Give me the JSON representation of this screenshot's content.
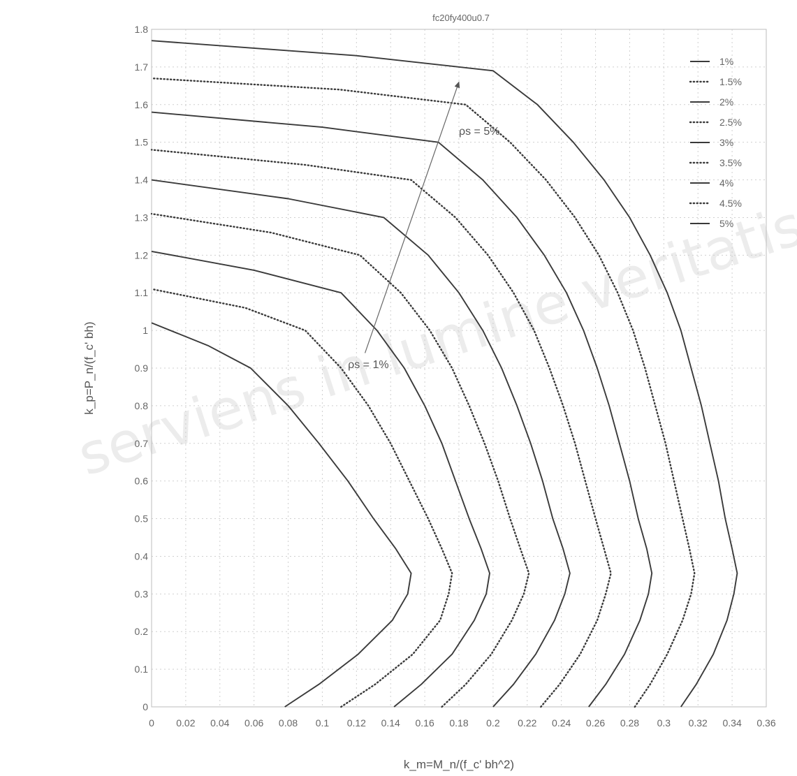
{
  "chart_data": {
    "type": "line",
    "title": "fc20fy400u0.7",
    "xlabel": "k_m=M_n/(f_c' bh^2)",
    "ylabel": "k_p=P_n/(f_c' bh)",
    "xlim": [
      0,
      0.36
    ],
    "ylim": [
      0,
      1.8
    ],
    "x_ticks": [
      0,
      0.02,
      0.04,
      0.06,
      0.08,
      0.1,
      0.12,
      0.14,
      0.16,
      0.18,
      0.2,
      0.22,
      0.24,
      0.26,
      0.28,
      0.3,
      0.32,
      0.34,
      0.36
    ],
    "y_ticks": [
      0,
      0.1,
      0.2,
      0.3,
      0.4,
      0.5,
      0.6,
      0.7,
      0.8,
      0.9,
      1,
      1.1,
      1.2,
      1.3,
      1.4,
      1.5,
      1.6,
      1.7,
      1.8
    ],
    "grid": true,
    "legend_position": "top-right",
    "annotations": [
      {
        "text": "ρs = 1%",
        "x": 0.115,
        "y": 0.9
      },
      {
        "text": "ρs = 5%",
        "x": 0.18,
        "y": 1.52
      }
    ],
    "arrow": {
      "from": [
        0.125,
        0.94
      ],
      "to": [
        0.18,
        1.66
      ]
    },
    "series": [
      {
        "name": "1%",
        "style": "solid",
        "points": [
          [
            0.078,
            0
          ],
          [
            0.098,
            0.06
          ],
          [
            0.121,
            0.14
          ],
          [
            0.141,
            0.23
          ],
          [
            0.15,
            0.3
          ],
          [
            0.152,
            0.355
          ],
          [
            0.143,
            0.42
          ],
          [
            0.13,
            0.5
          ],
          [
            0.115,
            0.6
          ],
          [
            0.098,
            0.7
          ],
          [
            0.08,
            0.8
          ],
          [
            0.058,
            0.9
          ],
          [
            0.033,
            0.96
          ],
          [
            0,
            1.02
          ]
        ]
      },
      {
        "name": "1.5%",
        "style": "dotted",
        "points": [
          [
            0.111,
            0
          ],
          [
            0.131,
            0.06
          ],
          [
            0.153,
            0.14
          ],
          [
            0.169,
            0.23
          ],
          [
            0.174,
            0.3
          ],
          [
            0.176,
            0.355
          ],
          [
            0.17,
            0.42
          ],
          [
            0.162,
            0.5
          ],
          [
            0.151,
            0.6
          ],
          [
            0.14,
            0.7
          ],
          [
            0.127,
            0.8
          ],
          [
            0.111,
            0.9
          ],
          [
            0.09,
            1.0
          ],
          [
            0.055,
            1.06
          ],
          [
            0,
            1.11
          ]
        ]
      },
      {
        "name": "2%",
        "style": "solid",
        "points": [
          [
            0.142,
            0
          ],
          [
            0.158,
            0.06
          ],
          [
            0.176,
            0.14
          ],
          [
            0.189,
            0.23
          ],
          [
            0.196,
            0.3
          ],
          [
            0.198,
            0.355
          ],
          [
            0.193,
            0.42
          ],
          [
            0.186,
            0.5
          ],
          [
            0.178,
            0.6
          ],
          [
            0.17,
            0.7
          ],
          [
            0.16,
            0.8
          ],
          [
            0.148,
            0.9
          ],
          [
            0.132,
            1.0
          ],
          [
            0.111,
            1.1
          ],
          [
            0.06,
            1.16
          ],
          [
            0,
            1.21
          ]
        ]
      },
      {
        "name": "2.5%",
        "style": "dotted",
        "points": [
          [
            0.17,
            0
          ],
          [
            0.184,
            0.06
          ],
          [
            0.199,
            0.14
          ],
          [
            0.211,
            0.23
          ],
          [
            0.218,
            0.3
          ],
          [
            0.221,
            0.355
          ],
          [
            0.216,
            0.42
          ],
          [
            0.21,
            0.5
          ],
          [
            0.203,
            0.6
          ],
          [
            0.195,
            0.7
          ],
          [
            0.186,
            0.8
          ],
          [
            0.176,
            0.9
          ],
          [
            0.163,
            1.0
          ],
          [
            0.146,
            1.1
          ],
          [
            0.122,
            1.2
          ],
          [
            0.07,
            1.26
          ],
          [
            0,
            1.31
          ]
        ]
      },
      {
        "name": "3%",
        "style": "solid",
        "points": [
          [
            0.2,
            0
          ],
          [
            0.212,
            0.06
          ],
          [
            0.225,
            0.14
          ],
          [
            0.236,
            0.23
          ],
          [
            0.242,
            0.3
          ],
          [
            0.245,
            0.355
          ],
          [
            0.241,
            0.42
          ],
          [
            0.235,
            0.5
          ],
          [
            0.229,
            0.6
          ],
          [
            0.222,
            0.7
          ],
          [
            0.214,
            0.8
          ],
          [
            0.205,
            0.9
          ],
          [
            0.194,
            1.0
          ],
          [
            0.18,
            1.1
          ],
          [
            0.162,
            1.2
          ],
          [
            0.136,
            1.3
          ],
          [
            0.08,
            1.35
          ],
          [
            0,
            1.4
          ]
        ]
      },
      {
        "name": "3.5%",
        "style": "dotted",
        "points": [
          [
            0.228,
            0
          ],
          [
            0.239,
            0.06
          ],
          [
            0.251,
            0.14
          ],
          [
            0.261,
            0.23
          ],
          [
            0.266,
            0.3
          ],
          [
            0.269,
            0.355
          ],
          [
            0.265,
            0.42
          ],
          [
            0.26,
            0.5
          ],
          [
            0.254,
            0.6
          ],
          [
            0.248,
            0.7
          ],
          [
            0.241,
            0.8
          ],
          [
            0.233,
            0.9
          ],
          [
            0.224,
            1.0
          ],
          [
            0.212,
            1.1
          ],
          [
            0.197,
            1.2
          ],
          [
            0.178,
            1.3
          ],
          [
            0.152,
            1.4
          ],
          [
            0.09,
            1.44
          ],
          [
            0,
            1.48
          ]
        ]
      },
      {
        "name": "4%",
        "style": "solid",
        "points": [
          [
            0.256,
            0
          ],
          [
            0.266,
            0.06
          ],
          [
            0.277,
            0.14
          ],
          [
            0.286,
            0.23
          ],
          [
            0.291,
            0.3
          ],
          [
            0.293,
            0.355
          ],
          [
            0.29,
            0.42
          ],
          [
            0.285,
            0.5
          ],
          [
            0.28,
            0.6
          ],
          [
            0.274,
            0.7
          ],
          [
            0.268,
            0.8
          ],
          [
            0.261,
            0.9
          ],
          [
            0.253,
            1.0
          ],
          [
            0.243,
            1.1
          ],
          [
            0.23,
            1.2
          ],
          [
            0.214,
            1.3
          ],
          [
            0.194,
            1.4
          ],
          [
            0.168,
            1.5
          ],
          [
            0.1,
            1.54
          ],
          [
            0,
            1.58
          ]
        ]
      },
      {
        "name": "4.5%",
        "style": "dotted",
        "points": [
          [
            0.283,
            0
          ],
          [
            0.292,
            0.06
          ],
          [
            0.302,
            0.14
          ],
          [
            0.311,
            0.23
          ],
          [
            0.316,
            0.3
          ],
          [
            0.318,
            0.355
          ],
          [
            0.315,
            0.42
          ],
          [
            0.311,
            0.5
          ],
          [
            0.306,
            0.6
          ],
          [
            0.301,
            0.7
          ],
          [
            0.295,
            0.8
          ],
          [
            0.289,
            0.9
          ],
          [
            0.282,
            1.0
          ],
          [
            0.273,
            1.1
          ],
          [
            0.262,
            1.2
          ],
          [
            0.248,
            1.3
          ],
          [
            0.231,
            1.4
          ],
          [
            0.21,
            1.5
          ],
          [
            0.184,
            1.6
          ],
          [
            0.11,
            1.64
          ],
          [
            0,
            1.67
          ]
        ]
      },
      {
        "name": "5%",
        "style": "solid",
        "points": [
          [
            0.31,
            0
          ],
          [
            0.319,
            0.06
          ],
          [
            0.329,
            0.14
          ],
          [
            0.337,
            0.23
          ],
          [
            0.341,
            0.3
          ],
          [
            0.343,
            0.355
          ],
          [
            0.34,
            0.42
          ],
          [
            0.336,
            0.5
          ],
          [
            0.332,
            0.6
          ],
          [
            0.327,
            0.7
          ],
          [
            0.322,
            0.8
          ],
          [
            0.316,
            0.9
          ],
          [
            0.31,
            1.0
          ],
          [
            0.302,
            1.1
          ],
          [
            0.292,
            1.2
          ],
          [
            0.28,
            1.3
          ],
          [
            0.265,
            1.4
          ],
          [
            0.247,
            1.5
          ],
          [
            0.226,
            1.6
          ],
          [
            0.2,
            1.69
          ],
          [
            0.12,
            1.73
          ],
          [
            0,
            1.77
          ]
        ]
      }
    ]
  },
  "watermark": "serviens in lumine veritatis"
}
